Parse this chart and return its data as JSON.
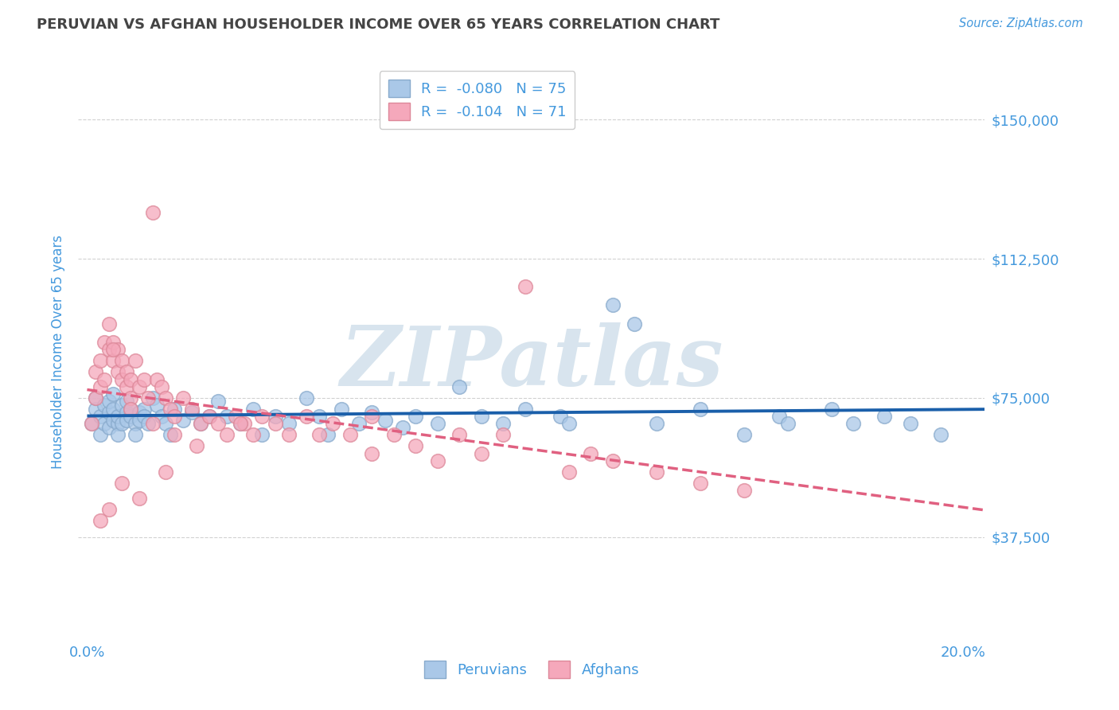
{
  "title": "PERUVIAN VS AFGHAN HOUSEHOLDER INCOME OVER 65 YEARS CORRELATION CHART",
  "source": "Source: ZipAtlas.com",
  "ylabel": "Householder Income Over 65 years",
  "xlim": [
    -0.002,
    0.205
  ],
  "ylim": [
    10000,
    165000
  ],
  "yticks": [
    37500,
    75000,
    112500,
    150000
  ],
  "ytick_labels": [
    "$37,500",
    "$75,000",
    "$112,500",
    "$150,000"
  ],
  "xticks": [
    0.0,
    0.05,
    0.1,
    0.15,
    0.2
  ],
  "xtick_labels": [
    "0.0%",
    "",
    "",
    "",
    "20.0%"
  ],
  "peruvian_dot_color": "#aac8e8",
  "peruvian_dot_edge": "#88aacc",
  "afghan_dot_color": "#f5a8bb",
  "afghan_dot_edge": "#dd8899",
  "peruvian_line_color": "#1a5faa",
  "afghan_line_color": "#e06080",
  "R_peruvian": -0.08,
  "N_peruvian": 75,
  "R_afghan": -0.104,
  "N_afghan": 71,
  "legend_label_peruvian": "Peruvians",
  "legend_label_afghan": "Afghans",
  "bg_color": "#ffffff",
  "grid_color": "#cccccc",
  "title_color": "#444444",
  "tick_color": "#4499dd",
  "source_color": "#4499dd",
  "watermark": "ZIPatlas",
  "watermark_color": "#b8cfe0",
  "peruvian_x": [
    0.001,
    0.002,
    0.002,
    0.003,
    0.003,
    0.004,
    0.004,
    0.005,
    0.005,
    0.005,
    0.006,
    0.006,
    0.006,
    0.007,
    0.007,
    0.007,
    0.008,
    0.008,
    0.009,
    0.009,
    0.009,
    0.01,
    0.01,
    0.011,
    0.011,
    0.012,
    0.012,
    0.013,
    0.013,
    0.014,
    0.015,
    0.016,
    0.017,
    0.018,
    0.019,
    0.02,
    0.022,
    0.024,
    0.026,
    0.028,
    0.03,
    0.032,
    0.035,
    0.038,
    0.04,
    0.043,
    0.046,
    0.05,
    0.053,
    0.055,
    0.058,
    0.062,
    0.065,
    0.068,
    0.072,
    0.075,
    0.08,
    0.085,
    0.09,
    0.095,
    0.1,
    0.108,
    0.11,
    0.12,
    0.125,
    0.13,
    0.14,
    0.15,
    0.158,
    0.16,
    0.17,
    0.175,
    0.182,
    0.188,
    0.195
  ],
  "peruvian_y": [
    68000,
    72000,
    75000,
    65000,
    70000,
    73000,
    68000,
    67000,
    71000,
    74000,
    69000,
    76000,
    72000,
    68000,
    70000,
    65000,
    73000,
    68000,
    71000,
    69000,
    74000,
    70000,
    72000,
    68000,
    65000,
    71000,
    69000,
    72000,
    70000,
    68000,
    75000,
    73000,
    70000,
    68000,
    65000,
    72000,
    69000,
    71000,
    68000,
    70000,
    74000,
    70000,
    68000,
    72000,
    65000,
    70000,
    68000,
    75000,
    70000,
    65000,
    72000,
    68000,
    71000,
    69000,
    67000,
    70000,
    68000,
    78000,
    70000,
    68000,
    72000,
    70000,
    68000,
    100000,
    95000,
    68000,
    72000,
    65000,
    70000,
    68000,
    72000,
    68000,
    70000,
    68000,
    65000
  ],
  "afghan_x": [
    0.001,
    0.002,
    0.002,
    0.003,
    0.003,
    0.004,
    0.004,
    0.005,
    0.005,
    0.006,
    0.006,
    0.007,
    0.007,
    0.008,
    0.008,
    0.009,
    0.009,
    0.01,
    0.01,
    0.011,
    0.012,
    0.013,
    0.014,
    0.015,
    0.016,
    0.017,
    0.018,
    0.019,
    0.02,
    0.022,
    0.024,
    0.026,
    0.028,
    0.03,
    0.032,
    0.034,
    0.036,
    0.038,
    0.04,
    0.043,
    0.046,
    0.05,
    0.053,
    0.056,
    0.06,
    0.065,
    0.07,
    0.075,
    0.08,
    0.085,
    0.09,
    0.095,
    0.1,
    0.11,
    0.115,
    0.12,
    0.13,
    0.14,
    0.15,
    0.065,
    0.035,
    0.025,
    0.018,
    0.012,
    0.008,
    0.005,
    0.003,
    0.006,
    0.01,
    0.015,
    0.02
  ],
  "afghan_y": [
    68000,
    75000,
    82000,
    78000,
    85000,
    80000,
    90000,
    88000,
    95000,
    85000,
    90000,
    82000,
    88000,
    80000,
    85000,
    78000,
    82000,
    80000,
    75000,
    85000,
    78000,
    80000,
    75000,
    125000,
    80000,
    78000,
    75000,
    72000,
    70000,
    75000,
    72000,
    68000,
    70000,
    68000,
    65000,
    70000,
    68000,
    65000,
    70000,
    68000,
    65000,
    70000,
    65000,
    68000,
    65000,
    60000,
    65000,
    62000,
    58000,
    65000,
    60000,
    65000,
    105000,
    55000,
    60000,
    58000,
    55000,
    52000,
    50000,
    70000,
    68000,
    62000,
    55000,
    48000,
    52000,
    45000,
    42000,
    88000,
    72000,
    68000,
    65000
  ]
}
